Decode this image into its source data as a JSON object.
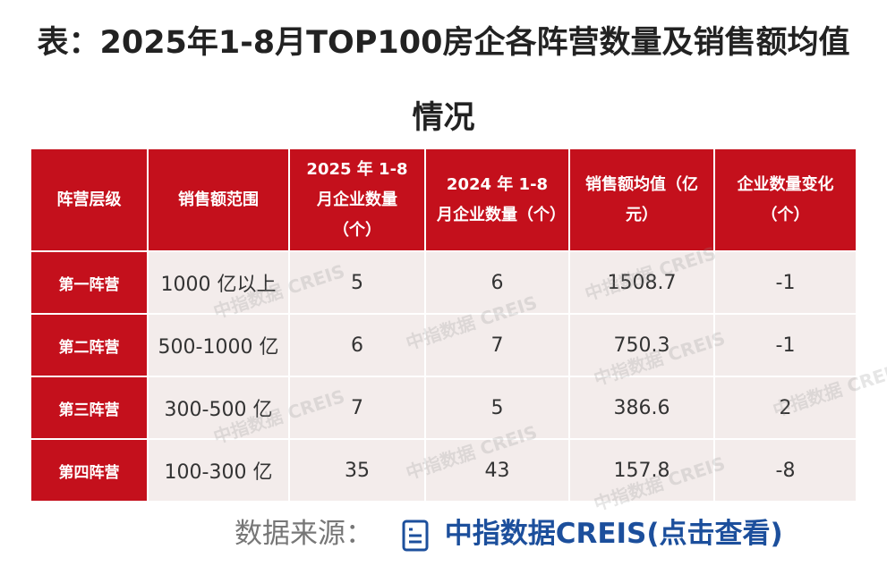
{
  "title": "表：2025年1-8月TOP100房企各阵营数量及销售额均值情况",
  "table": {
    "header": [
      "阵营层级",
      "销售额范围",
      "2025 年 1-8 月企业数量（个）",
      "2024 年 1-8 月企业数量（个）",
      "销售额均值（亿元）",
      "企业数量变化（个）"
    ],
    "rows": [
      [
        "第一阵营",
        "1000 亿以上",
        5,
        6,
        1508.7,
        -1
      ],
      [
        "第二阵营",
        "500-1000 亿",
        6,
        7,
        750.3,
        -1
      ],
      [
        "第三阵营",
        "300-500 亿",
        7,
        5,
        386.6,
        2
      ],
      [
        "第四阵营",
        "100-300 亿",
        35,
        43,
        157.8,
        -8
      ]
    ]
  },
  "watermark": "中指数据 CREIS",
  "footer": {
    "label": "数据来源：",
    "link": "中指数据CREIS(点击查看)"
  }
}
